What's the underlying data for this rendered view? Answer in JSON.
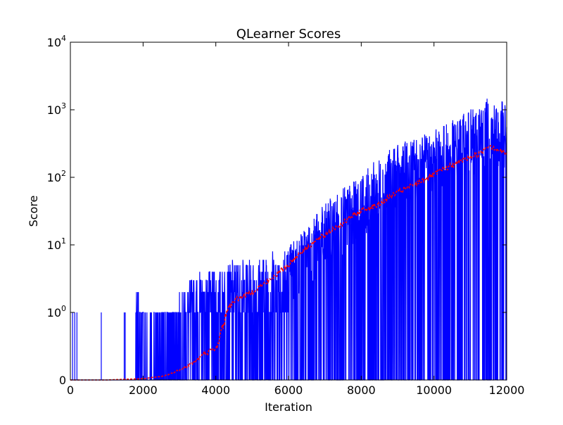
{
  "chart_data": {
    "type": "line",
    "title": "QLearner Scores",
    "xlabel": "Iteration",
    "ylabel": "Score",
    "xlim": [
      0,
      12000
    ],
    "yscale": "symlog",
    "ylim": [
      0,
      10000
    ],
    "grid": false,
    "legend": "none",
    "x_ticks": [
      {
        "value": 0,
        "label": "0"
      },
      {
        "value": 2000,
        "label": "2000"
      },
      {
        "value": 4000,
        "label": "4000"
      },
      {
        "value": 6000,
        "label": "6000"
      },
      {
        "value": 8000,
        "label": "8000"
      },
      {
        "value": 10000,
        "label": "10000"
      },
      {
        "value": 12000,
        "label": "12000"
      }
    ],
    "y_ticks": [
      {
        "value": 0,
        "base": "0",
        "exp": ""
      },
      {
        "value": 1,
        "base": "10",
        "exp": "0"
      },
      {
        "value": 10,
        "base": "10",
        "exp": "1"
      },
      {
        "value": 100,
        "base": "10",
        "exp": "2"
      },
      {
        "value": 1000,
        "base": "10",
        "exp": "3"
      },
      {
        "value": 10000,
        "base": "10",
        "exp": "4"
      }
    ],
    "series": [
      {
        "style": "raw-scores",
        "color": "#0000ff",
        "x": [
          0,
          500,
          1000,
          1500,
          1800,
          2000,
          2500,
          3000,
          3500,
          4000,
          4500,
          5000,
          5500,
          6000,
          6500,
          7000,
          7500,
          8000,
          8500,
          9000,
          9500,
          10000,
          10500,
          11000,
          11500,
          12000
        ],
        "low": [
          0,
          0,
          0,
          0,
          0,
          0,
          0,
          0,
          0,
          0,
          0,
          0,
          0,
          0,
          0,
          0,
          0,
          0,
          0,
          0,
          0,
          0,
          0,
          0,
          0,
          0
        ],
        "high": [
          1,
          0,
          1,
          1,
          2,
          1,
          1,
          2,
          4,
          4,
          6,
          6,
          8,
          10,
          20,
          40,
          70,
          100,
          200,
          300,
          400,
          500,
          700,
          1000,
          1500,
          1300
        ],
        "spikes": [
          [
            60,
            1
          ],
          [
            120,
            1
          ],
          [
            180,
            1
          ],
          [
            850,
            1
          ],
          [
            1480,
            1
          ],
          [
            1510,
            1
          ],
          [
            1800,
            1
          ],
          [
            1850,
            2
          ],
          [
            1870,
            2
          ]
        ]
      },
      {
        "style": "moving-average",
        "color": "#ff0000",
        "x": [
          0,
          1000,
          2000,
          2500,
          2800,
          3000,
          3200,
          3500,
          3700,
          4000,
          4200,
          4500,
          5000,
          5500,
          6000,
          6500,
          7000,
          7500,
          8000,
          8500,
          9000,
          9500,
          10000,
          10500,
          11000,
          11300,
          11500,
          12000
        ],
        "y": [
          0,
          0,
          0.02,
          0.05,
          0.1,
          0.15,
          0.2,
          0.3,
          0.4,
          0.45,
          0.8,
          1.5,
          2.0,
          3.0,
          5.0,
          9.0,
          14,
          21,
          32,
          40,
          60,
          80,
          110,
          150,
          200,
          230,
          300,
          220
        ]
      }
    ]
  }
}
